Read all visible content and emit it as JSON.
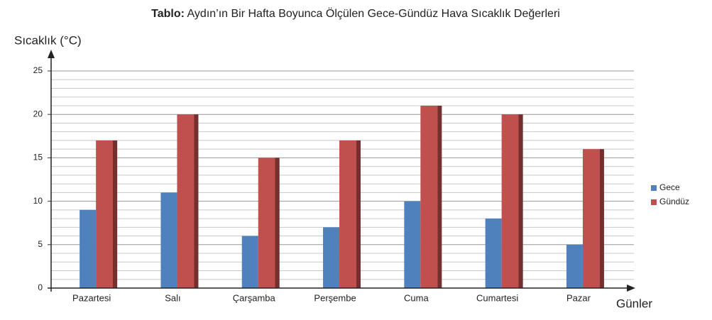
{
  "chart_data": {
    "type": "bar",
    "title_label": "Tablo:",
    "title": "Aydın’ın Bir Hafta Boyunca Ölçülen Gece-Gündüz Hava Sıcaklık Değerleri",
    "y_label": "Sıcaklık (°C)",
    "x_label": "Günler",
    "categories": [
      "Pazartesi",
      "Salı",
      "Çarşamba",
      "Perşembe",
      "Cuma",
      "Cumartesi",
      "Pazar"
    ],
    "series": [
      {
        "name": "Gece",
        "color": "#4f81bd",
        "values": [
          9,
          11,
          6,
          7,
          10,
          8,
          5
        ]
      },
      {
        "name": "Gündüz",
        "color": "#c0504d",
        "values": [
          17,
          20,
          15,
          17,
          21,
          20,
          16
        ]
      }
    ],
    "ylim": [
      0,
      25
    ],
    "yticks": [
      0,
      5,
      10,
      15,
      20,
      25
    ],
    "grid": true,
    "legend": "right"
  }
}
